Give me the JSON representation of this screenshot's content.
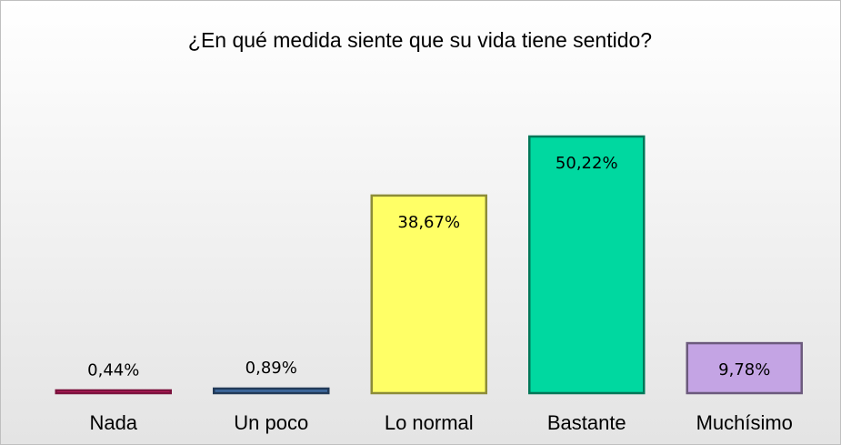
{
  "chart_data": {
    "type": "bar",
    "title": "¿En qué medida siente que su vida tiene sentido?",
    "categories": [
      "Nada",
      "Un poco",
      "Lo normal",
      "Bastante",
      "Muchísimo"
    ],
    "values": [
      0.44,
      0.89,
      38.67,
      50.22,
      9.78
    ],
    "value_labels": [
      "0,44%",
      "0,89%",
      "38,67%",
      "50,22%",
      "9,78%"
    ],
    "colors": [
      "#e0206e",
      "#3e6aa0",
      "#ffff66",
      "#00d8a0",
      "#c4a4e4"
    ]
  }
}
